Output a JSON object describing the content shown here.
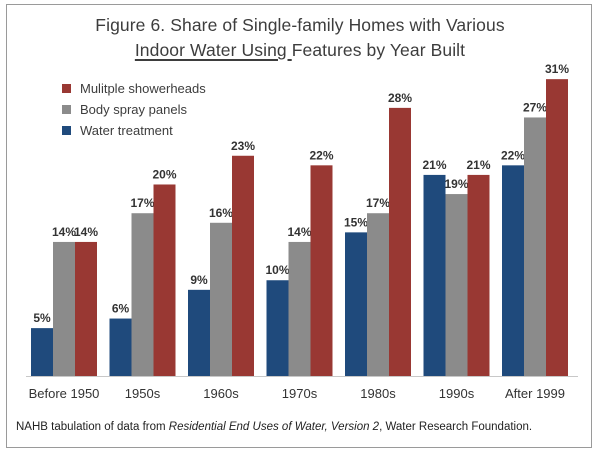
{
  "title": {
    "line1": "Figure 6.  Share of Single-family Homes with Various",
    "line2_underlined": "Indoor Water Using ",
    "line2_rest": "Features by Year Built"
  },
  "source": {
    "prefix": "NAHB tabulation of data from ",
    "italic": "Residential End Uses of Water, Version 2",
    "suffix": ", Water Research Foundation."
  },
  "colors": {
    "water_treatment": "#1f4a7c",
    "body_spray": "#8b8b8b",
    "showerheads": "#993833"
  },
  "chart_data": {
    "type": "bar",
    "title": "Share of Single-family Homes with Various Indoor Water Using Features by Year Built",
    "xlabel": "",
    "ylabel": "",
    "ylim": [
      0,
      33
    ],
    "legend_position": "top-left",
    "categories": [
      "Before 1950",
      "1950s",
      "1960s",
      "1970s",
      "1980s",
      "1990s",
      "After 1999"
    ],
    "series": [
      {
        "name": "Water treatment",
        "color": "#1f4a7c",
        "values": [
          5,
          6,
          9,
          10,
          15,
          21,
          22
        ],
        "labels": [
          "5%",
          "6%",
          "9%",
          "10%",
          "15%",
          "21%",
          "22%"
        ]
      },
      {
        "name": "Body spray panels",
        "color": "#8b8b8b",
        "values": [
          14,
          17,
          16,
          14,
          17,
          19,
          27
        ],
        "labels": [
          "14%",
          "17%",
          "16%",
          "14%",
          "17%",
          "19%",
          "27%"
        ]
      },
      {
        "name": "Mulitple showerheads",
        "color": "#993833",
        "values": [
          14,
          20,
          23,
          22,
          28,
          21,
          31
        ],
        "labels": [
          "14%",
          "20%",
          "23%",
          "22%",
          "28%",
          "21%",
          "31%"
        ]
      }
    ],
    "legend_order": [
      "Mulitple showerheads",
      "Body spray panels",
      "Water treatment"
    ]
  }
}
